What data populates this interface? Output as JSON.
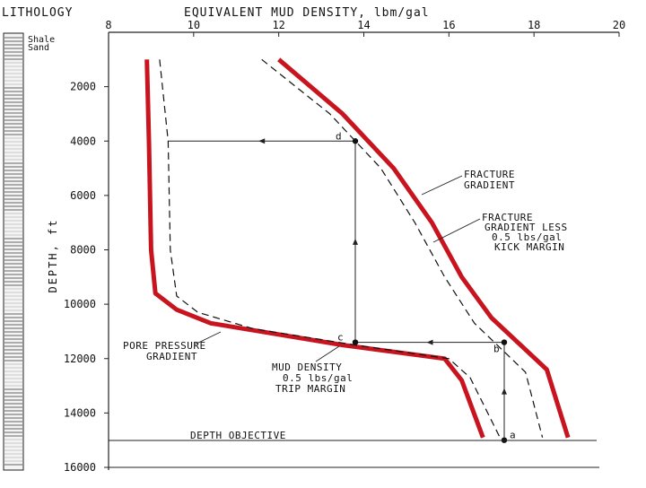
{
  "chart_data": {
    "type": "line",
    "title": "EQUIVALENT MUD DENSITY, lbm/gal",
    "xlabel": "EQUIVALENT MUD DENSITY, lbm/gal",
    "ylabel": "DEPTH, ft",
    "xlim": [
      8,
      20
    ],
    "ylim": [
      16000,
      0
    ],
    "x_ticks": [
      "8",
      "10",
      "12",
      "14",
      "16",
      "18",
      "20"
    ],
    "y_ticks": [
      "2000",
      "4000",
      "6000",
      "8000",
      "10000",
      "12000",
      "14000",
      "16000"
    ],
    "grid": false,
    "lithology": {
      "label": "LITHOLOGY",
      "legend": [
        "Shale",
        "Sand"
      ]
    },
    "series": [
      {
        "name": "FRACTURE GRADIENT",
        "style": "solid-red",
        "color": "#c8141e",
        "x": [
          12.0,
          13.5,
          14.7,
          15.6,
          16.3,
          17.0,
          18.3,
          18.8
        ],
        "y": [
          1000,
          3000,
          5000,
          7000,
          9000,
          10500,
          12400,
          14900
        ]
      },
      {
        "name": "FRACTURE GRADIENT LESS 0.5 lbs/gal KICK MARGIN",
        "style": "dashed",
        "color": "#111111",
        "x": [
          11.6,
          13.2,
          14.4,
          15.2,
          15.9,
          16.6,
          17.8,
          18.2
        ],
        "y": [
          1000,
          3000,
          5000,
          7000,
          9000,
          10700,
          12500,
          14900
        ]
      },
      {
        "name": "PORE PRESSURE GRADIENT",
        "style": "solid-red",
        "color": "#c8141e",
        "x": [
          8.9,
          8.95,
          9.0,
          9.1,
          9.6,
          10.4,
          13.5,
          15.9,
          16.3,
          16.8
        ],
        "y": [
          1000,
          4000,
          8000,
          9600,
          10200,
          10700,
          11500,
          12000,
          12800,
          14900
        ]
      },
      {
        "name": "MUD DENSITY 0.5 lbs/gal TRIP MARGIN",
        "style": "dashed",
        "color": "#111111",
        "x": [
          9.2,
          9.4,
          9.45,
          9.6,
          10.1,
          11.4,
          13.8,
          16.0,
          16.5,
          17.2
        ],
        "y": [
          1000,
          4000,
          8000,
          9700,
          10300,
          10900,
          11500,
          12000,
          12700,
          14900
        ]
      }
    ],
    "design_path": {
      "x": [
        17.3,
        17.3,
        13.8,
        13.8,
        9.4
      ],
      "y": [
        15000,
        11400,
        11400,
        4000,
        4000
      ],
      "points": [
        {
          "label": "a",
          "x": 17.3,
          "y": 15000
        },
        {
          "label": "b",
          "x": 17.3,
          "y": 11400
        },
        {
          "label": "c",
          "x": 13.8,
          "y": 11400
        },
        {
          "label": "d",
          "x": 13.8,
          "y": 4000
        }
      ]
    },
    "depth_objective": {
      "label": "DEPTH OBJECTIVE",
      "y": 15000
    },
    "annotations": {
      "fracture_gradient": [
        "FRACTURE",
        "GRADIENT"
      ],
      "fracture_less": [
        "FRACTURE",
        "GRADIENT LESS",
        "0.5 lbs/gal",
        "KICK MARGIN"
      ],
      "pore_pressure": [
        "PORE PRESSURE",
        "GRADIENT"
      ],
      "mud_density": [
        "MUD DENSITY",
        "0.5 lbs/gal",
        "TRIP MARGIN"
      ]
    }
  }
}
